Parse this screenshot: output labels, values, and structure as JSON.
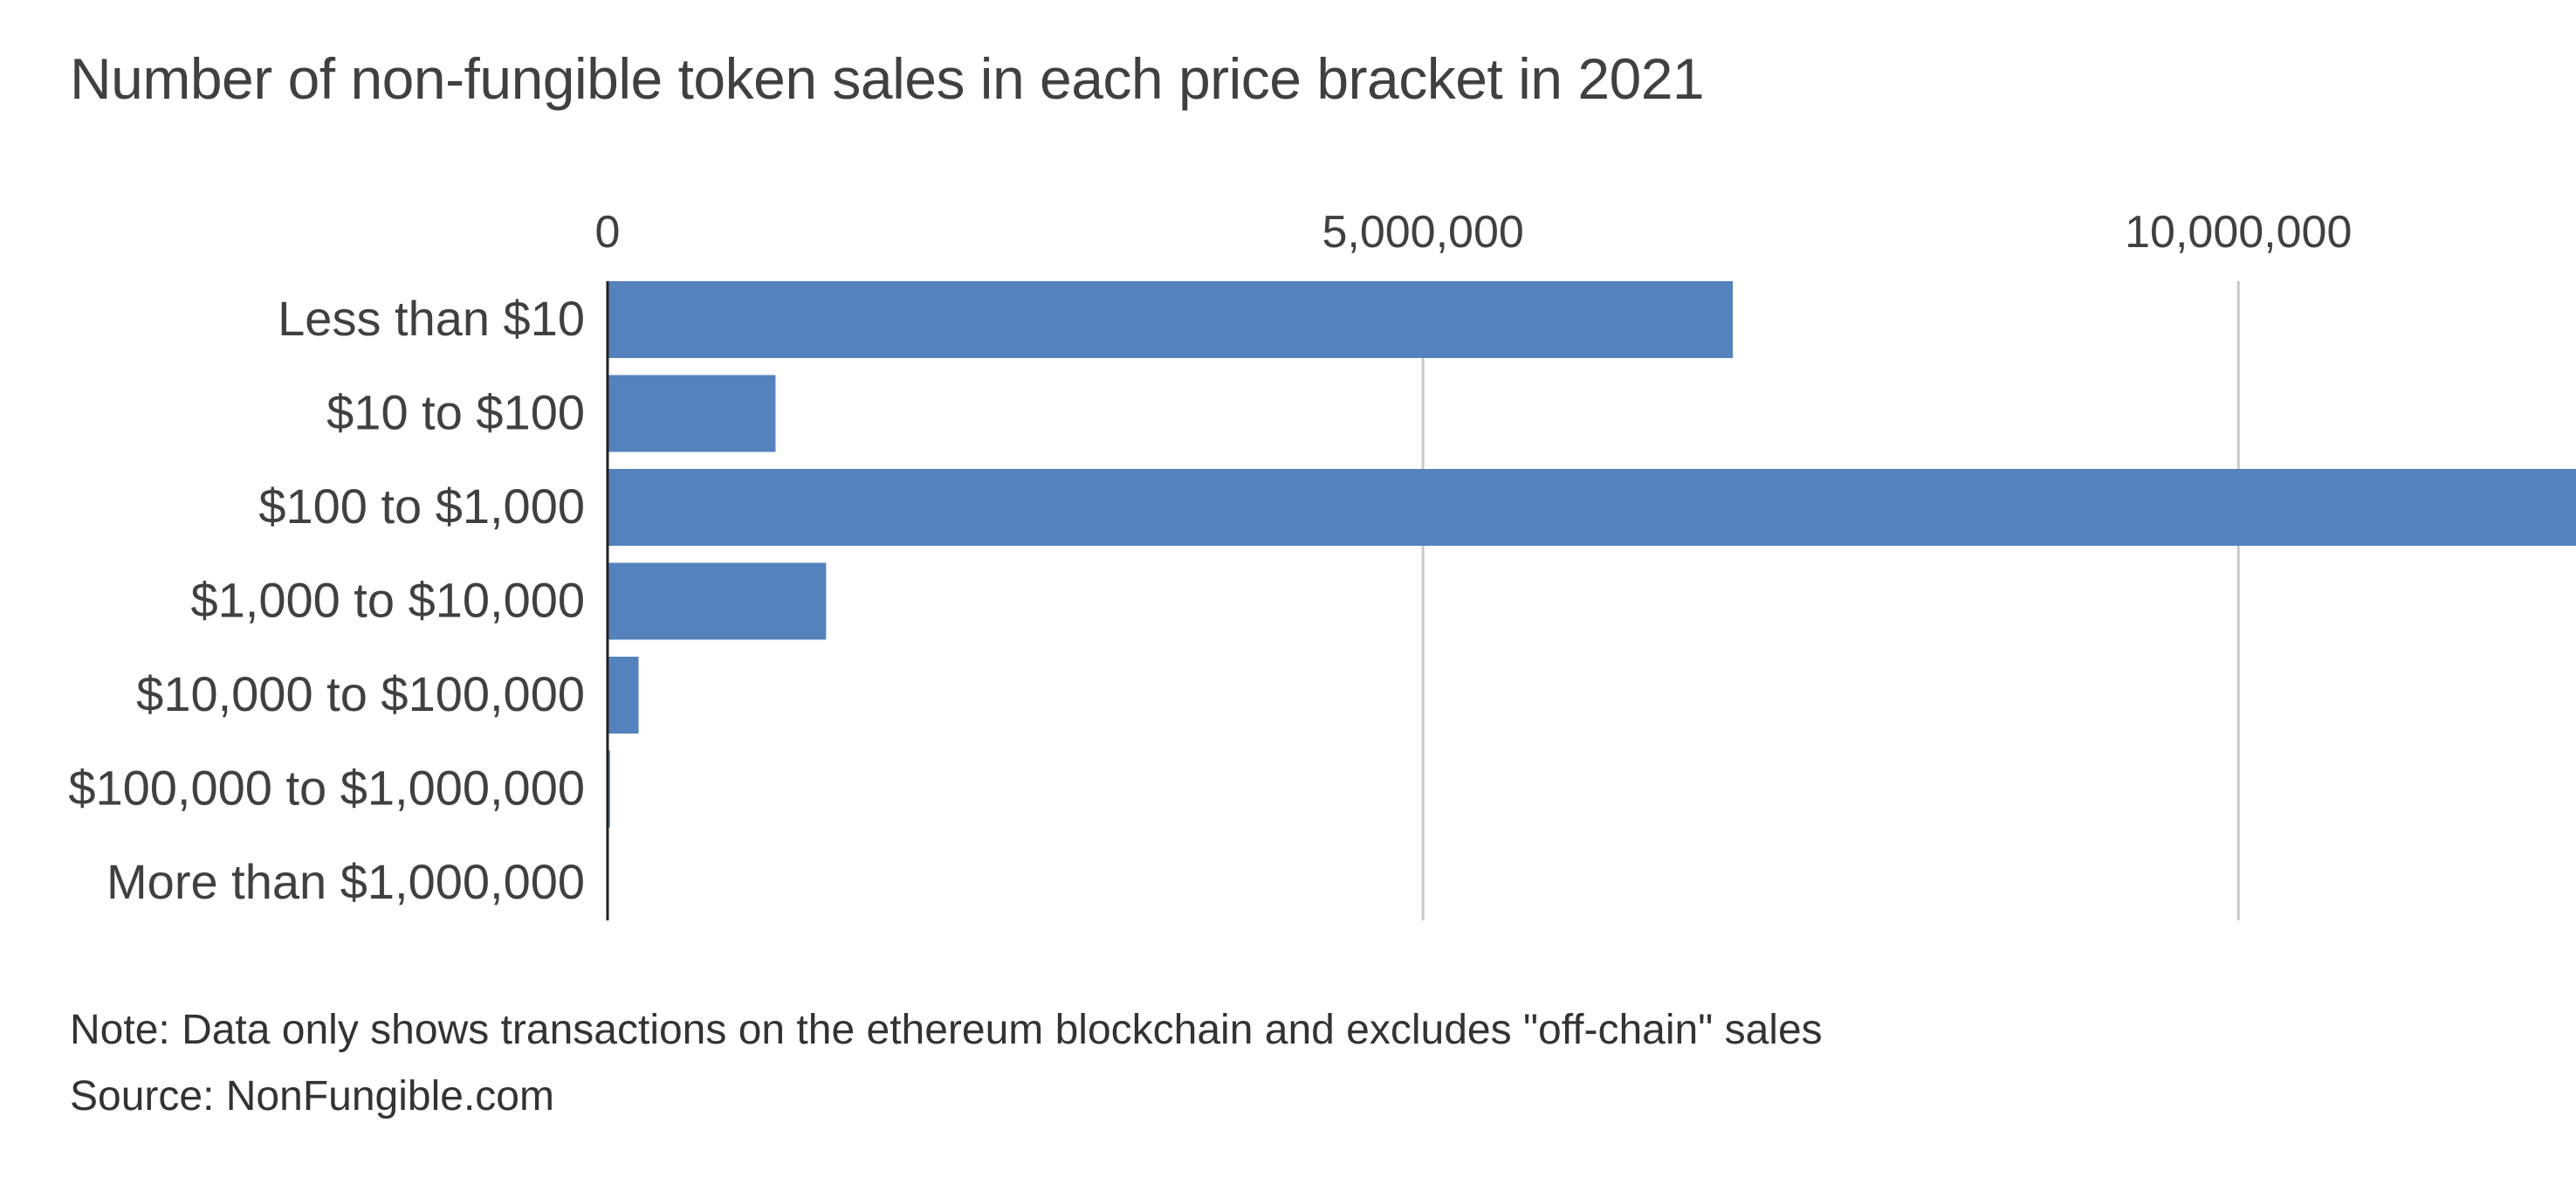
{
  "chart_data": {
    "type": "bar",
    "orientation": "horizontal",
    "title": "Number of non-fungible token sales in each price bracket in 2021",
    "categories": [
      "Less than $10",
      "$10 to $100",
      "$100 to $1,000",
      "$1,000 to $10,000",
      "$10,000 to $100,000",
      "$100,000 to $1,000,000",
      "More than $1,000,000"
    ],
    "values": [
      6900000,
      1030000,
      12070000,
      1340000,
      190000,
      15000,
      600
    ],
    "xlim": [
      0,
      12070000
    ],
    "x_ticks": [
      {
        "value": 0,
        "label": "0"
      },
      {
        "value": 5000000,
        "label": "5,000,000"
      },
      {
        "value": 10000000,
        "label": "10,000,000"
      }
    ],
    "xaxis_position": "top",
    "grid": true,
    "legend": "none",
    "bar_color": "#5482bc",
    "grid_color": "#c8c8c8",
    "baseline_color": "#222222"
  },
  "footer": {
    "note": "Note: Data only shows transactions on the ethereum blockchain and excludes \"off-chain\" sales",
    "source": "Source: NonFungible.com"
  }
}
